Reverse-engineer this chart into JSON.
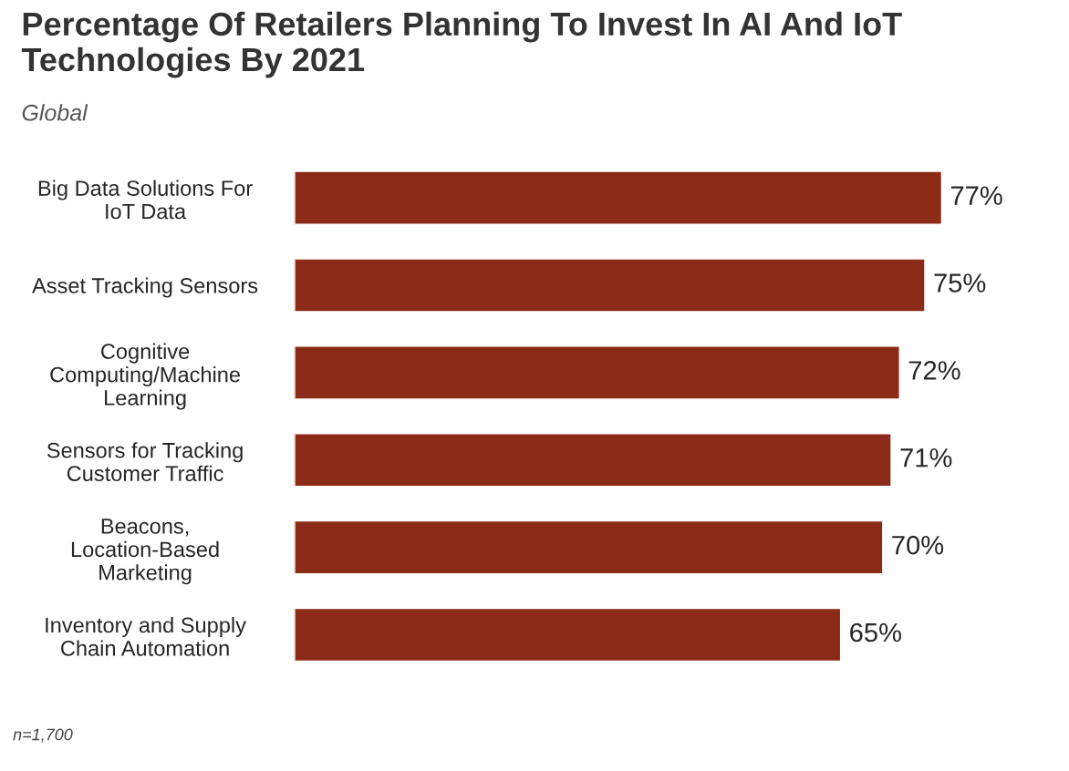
{
  "chart_data": {
    "type": "bar",
    "orientation": "horizontal",
    "title": "Percentage Of Retailers Planning To Invest In AI And IoT Technologies By 2021",
    "subtitle": "Global",
    "categories": [
      "Big Data Solutions For IoT Data",
      "Asset Tracking Sensors",
      "Cognitive Computing/Machine Learning",
      "Sensors for Tracking Customer Traffic",
      "Beacons, Location-Based Marketing",
      "Inventory and Supply Chain Automation"
    ],
    "values": [
      77,
      75,
      72,
      71,
      70,
      65
    ],
    "value_labels": [
      "77%",
      "75%",
      "72%",
      "71%",
      "70%",
      "65%"
    ],
    "color": "#8b2a16",
    "tick_labels": "y",
    "grid": false,
    "legend": false,
    "annotations": [
      "n=1,700"
    ]
  }
}
